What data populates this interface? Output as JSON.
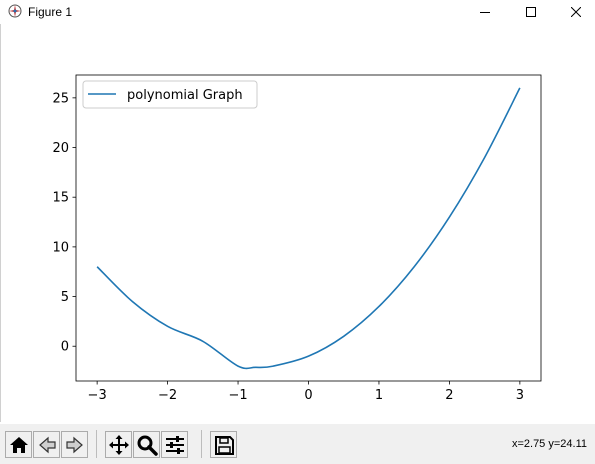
{
  "window": {
    "title": "Figure 1",
    "icons": [
      "app-icon",
      "minimize-icon",
      "maximize-icon",
      "close-icon"
    ]
  },
  "toolbar": {
    "buttons": [
      "home-icon",
      "back-icon",
      "forward-icon",
      "pan-icon",
      "zoom-icon",
      "configure-subplots-icon",
      "save-icon"
    ],
    "coordinates": "x=2.75 y=24.11"
  },
  "colors": {
    "line": "#1f77b4",
    "toolbar_bg": "#f0f0f0"
  },
  "chart_data": {
    "type": "line",
    "title": "",
    "xlabel": "",
    "ylabel": "",
    "xlim": [
      -3.3,
      3.3
    ],
    "ylim": [
      -3.5,
      27.3
    ],
    "xticks": [
      -3,
      -2,
      -1,
      0,
      1,
      2,
      3
    ],
    "xtick_labels": [
      "−3",
      "−2",
      "−1",
      "0",
      "1",
      "2",
      "3"
    ],
    "yticks": [
      0,
      5,
      10,
      15,
      20,
      25
    ],
    "ytick_labels": [
      "0",
      "5",
      "10",
      "15",
      "20",
      "25"
    ],
    "legend": {
      "location": "upper left",
      "entries": [
        "polynomial Graph"
      ]
    },
    "grid": false,
    "series": [
      {
        "name": "polynomial Graph",
        "color": "#1f77b4",
        "x": [
          -3,
          -2.5,
          -2,
          -1.5,
          -1,
          -0.75,
          -0.5,
          0,
          0.5,
          1,
          1.5,
          2,
          2.5,
          3
        ],
        "y": [
          8,
          4.5,
          2,
          0.5,
          -2,
          -2.125,
          -2,
          -1,
          1,
          4,
          8,
          13,
          19,
          26
        ]
      }
    ]
  }
}
